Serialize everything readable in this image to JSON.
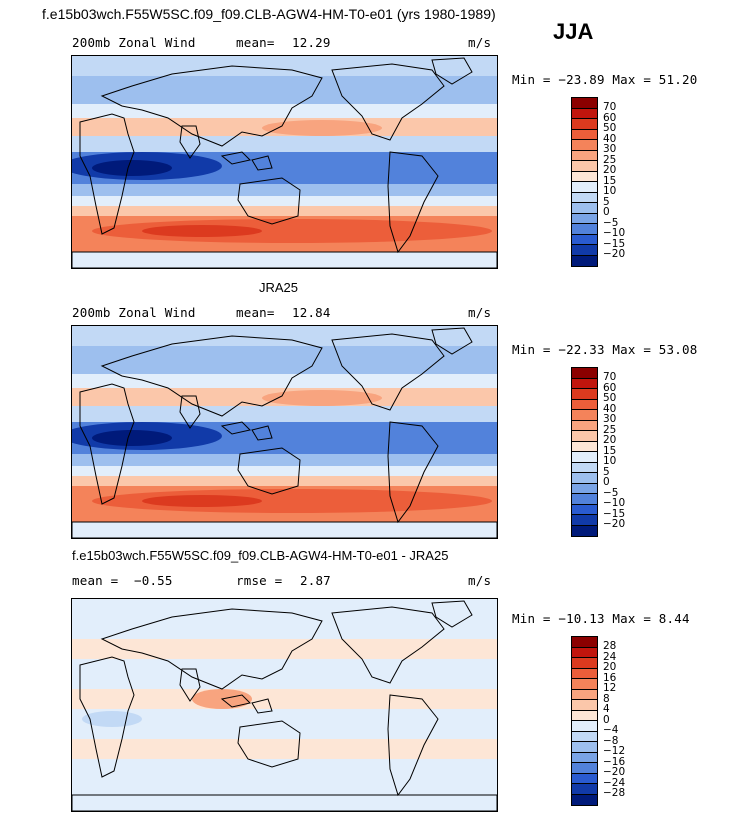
{
  "header": {
    "case_title": "f.e15b03wch.F55W5SC.f09_f09.CLB-AGW4-HM-T0-e01 (yrs 1980-1989)",
    "season": "JJA"
  },
  "panels": [
    {
      "title": "",
      "variable": "200mb Zonal Wind",
      "stat_label": "mean=",
      "stat_value": "12.29",
      "units": "m/s",
      "minmax": "Min = −23.89 Max =  51.20",
      "colorbar_labels": [
        "70",
        "60",
        "50",
        "40",
        "30",
        "25",
        "20",
        "15",
        "10",
        "5",
        "0",
        "−5",
        "−10",
        "−15",
        "−20"
      ],
      "colorbar_colors": [
        "#8b0000",
        "#c1150d",
        "#dc3a1f",
        "#ec5e3a",
        "#f4835a",
        "#f8a47f",
        "#fbc7aa",
        "#fde6d6",
        "#e2eefb",
        "#c2d9f5",
        "#9dbfee",
        "#7aa4e6",
        "#5282db",
        "#2a5bd0",
        "#113aa8",
        "#001a7a"
      ],
      "map_kind": "model"
    },
    {
      "title": "JRA25",
      "variable": "200mb Zonal Wind",
      "stat_label": "mean=",
      "stat_value": "12.84",
      "units": "m/s",
      "minmax": "Min = −22.33 Max =  53.08",
      "colorbar_labels": [
        "70",
        "60",
        "50",
        "40",
        "30",
        "25",
        "20",
        "15",
        "10",
        "5",
        "0",
        "−5",
        "−10",
        "−15",
        "−20"
      ],
      "colorbar_colors": [
        "#8b0000",
        "#c1150d",
        "#dc3a1f",
        "#ec5e3a",
        "#f4835a",
        "#f8a47f",
        "#fbc7aa",
        "#fde6d6",
        "#e2eefb",
        "#c2d9f5",
        "#9dbfee",
        "#7aa4e6",
        "#5282db",
        "#2a5bd0",
        "#113aa8",
        "#001a7a"
      ],
      "map_kind": "obs"
    },
    {
      "title": "f.e15b03wch.F55W5SC.f09_f09.CLB-AGW4-HM-T0-e01 - JRA25",
      "variable": "mean =",
      "stat_label": "rmse =",
      "stat_value": "2.87",
      "mean_value": "−0.55",
      "units": "m/s",
      "minmax": "Min = −10.13 Max =   8.44",
      "colorbar_labels": [
        "28",
        "24",
        "20",
        "16",
        "12",
        "8",
        "4",
        "0",
        "−4",
        "−8",
        "−12",
        "−16",
        "−20",
        "−24",
        "−28"
      ],
      "colorbar_colors": [
        "#8b0000",
        "#c1150d",
        "#dc3a1f",
        "#ec5e3a",
        "#f4835a",
        "#f8a47f",
        "#fbc7aa",
        "#fde6d6",
        "#e2eefb",
        "#c2d9f5",
        "#9dbfee",
        "#7aa4e6",
        "#5282db",
        "#2a5bd0",
        "#113aa8",
        "#001a7a"
      ],
      "map_kind": "diff"
    }
  ]
}
